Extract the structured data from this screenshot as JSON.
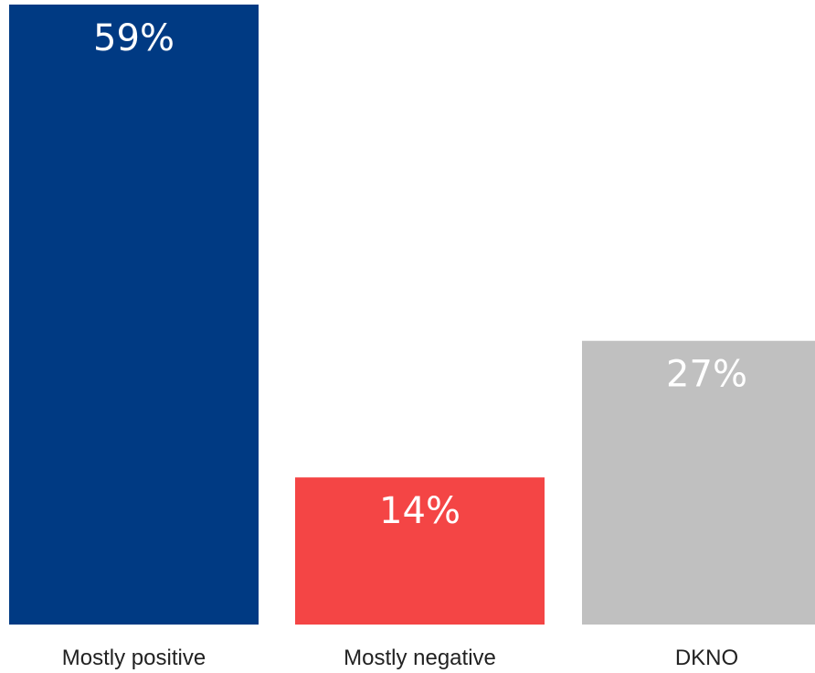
{
  "chart_data": {
    "type": "bar",
    "categories": [
      "Mostly positive",
      "Mostly negative",
      "DKNO"
    ],
    "values": [
      59,
      14,
      27
    ],
    "value_labels": [
      "59%",
      "14%",
      "27%"
    ],
    "colors": [
      "#003a83",
      "#f44545",
      "#c0c0c0"
    ],
    "ylim": [
      0,
      59
    ],
    "grid": false,
    "legend": "none"
  }
}
